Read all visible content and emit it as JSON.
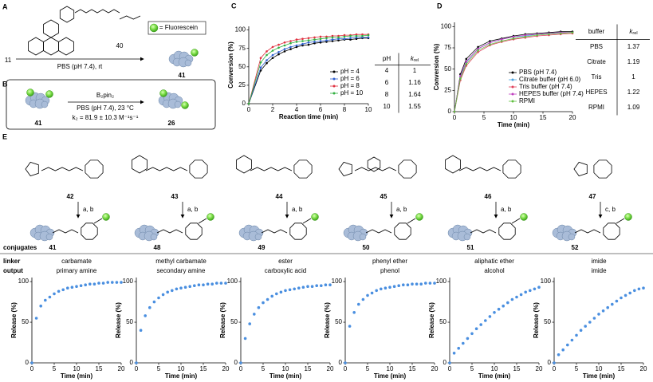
{
  "panel_labels": [
    "A",
    "B",
    "C",
    "D",
    "E"
  ],
  "scheme_a": {
    "reactant": "11",
    "reagent": "40",
    "legend": "= Fluorescein",
    "conditions": "PBS (pH 7.4), rt",
    "product": "41"
  },
  "scheme_b": {
    "reactant": "41",
    "reagent": "B₂pin₂",
    "conditions": "PBS (pH 7.4), 23 °C",
    "rate": "k₂ = 81.9 ± 10.3 M⁻¹s⁻¹",
    "product": "26"
  },
  "tables": [
    {
      "header": [
        "pH",
        {
          "text": "k",
          "subscript": "rel"
        }
      ],
      "rows": [
        [
          4,
          1
        ],
        [
          6,
          1.16
        ],
        [
          8,
          1.64
        ],
        [
          10,
          1.55
        ]
      ]
    },
    {
      "header": [
        "buffer",
        {
          "text": "k",
          "subscript": "rel"
        }
      ],
      "rows": [
        [
          "PBS",
          1.37
        ],
        [
          "Citrate",
          1.19
        ],
        [
          "Tris",
          1
        ],
        [
          "HEPES",
          1.22
        ],
        [
          "RPMI",
          1.09
        ]
      ]
    }
  ],
  "scheme_e": {
    "compounds": [
      "42",
      "43",
      "44",
      "45",
      "46",
      "47"
    ],
    "reagents": [
      "a, b",
      "a, b",
      "a, b",
      "a, b",
      "a, b",
      "c, b"
    ],
    "conjugates_label": "conjugates",
    "conjugates": [
      "41",
      "48",
      "49",
      "50",
      "51",
      "52"
    ],
    "linker_label": "linker",
    "linker": [
      "carbamate",
      "methyl carbamate",
      "ester",
      "phenyl ether",
      "aliphatic ether",
      "imide"
    ],
    "output_label": "output",
    "output": [
      "primary amine",
      "secondary amine",
      "carboxylic acid",
      "phenol",
      "alcohol",
      "imide"
    ]
  },
  "chart_data": [
    {
      "type": "line",
      "xlabel": "Reaction time (min)",
      "ylabel": "Conversion (%)",
      "x": [
        0,
        1,
        1.5,
        2,
        2.5,
        3,
        3.5,
        4,
        4.5,
        5,
        5.5,
        6,
        6.5,
        7,
        7.5,
        8,
        8.5,
        9,
        9.5,
        10
      ],
      "series": [
        {
          "name": "pH = 4",
          "color": "#000000",
          "values": [
            0,
            45,
            55,
            62,
            67,
            71,
            74,
            77,
            79,
            80,
            82,
            83,
            84,
            85,
            86,
            87,
            87,
            88,
            89,
            89
          ]
        },
        {
          "name": "pH = 6",
          "color": "#2f5fd0",
          "values": [
            0,
            49,
            59,
            66,
            70,
            74,
            77,
            79,
            81,
            83,
            84,
            85,
            86,
            87,
            88,
            88,
            89,
            90,
            90,
            90
          ]
        },
        {
          "name": "pH = 8",
          "color": "#e03040",
          "values": [
            0,
            62,
            71,
            77,
            80,
            83,
            85,
            87,
            88,
            89,
            90,
            91,
            91,
            92,
            92,
            93,
            93,
            94,
            94,
            94
          ]
        },
        {
          "name": "pH = 10",
          "color": "#30b040",
          "values": [
            0,
            56,
            66,
            72,
            76,
            79,
            82,
            84,
            85,
            86,
            87,
            88,
            89,
            90,
            90,
            91,
            92,
            92,
            92,
            93
          ]
        }
      ],
      "xlim": [
        0,
        10
      ],
      "xticks": [
        0,
        2,
        4,
        6,
        8,
        10
      ],
      "ylim": [
        0,
        105
      ],
      "yticks": [
        0,
        25,
        50,
        75,
        100
      ],
      "legend": "lower right"
    },
    {
      "type": "line",
      "xlabel": "Time (min)",
      "ylabel": "Conversion (%)",
      "x": [
        0,
        1,
        2,
        4,
        6,
        8,
        10,
        12,
        14,
        16,
        18,
        20
      ],
      "series": [
        {
          "name": "PBS (pH 7.4)",
          "color": "#000000",
          "values": [
            0,
            44,
            62,
            76,
            83,
            86,
            89,
            91,
            92,
            93,
            94,
            94
          ]
        },
        {
          "name": "Citrate buffer (pH 6.0)",
          "color": "#4aa3df",
          "values": [
            0,
            41,
            58,
            74,
            81,
            85,
            88,
            89,
            91,
            92,
            93,
            93
          ]
        },
        {
          "name": "Tris buffer (pH 7.4)",
          "color": "#e0405a",
          "values": [
            0,
            37,
            54,
            70,
            78,
            82,
            85,
            87,
            89,
            90,
            91,
            92
          ]
        },
        {
          "name": "HEPES buffer (pH 7.4)",
          "color": "#c040c0",
          "values": [
            0,
            42,
            59,
            74,
            81,
            85,
            88,
            90,
            91,
            92,
            93,
            93
          ]
        },
        {
          "name": "RPMI",
          "color": "#60c040",
          "values": [
            0,
            39,
            56,
            72,
            79,
            83,
            86,
            88,
            90,
            91,
            92,
            93
          ]
        }
      ],
      "xlim": [
        0,
        20
      ],
      "xticks": [
        0,
        5,
        10,
        15,
        20
      ],
      "ylim": [
        0,
        105
      ],
      "yticks": [
        0,
        25,
        50,
        75,
        100
      ],
      "legend": "lower right"
    },
    {
      "type": "scatter",
      "xlabel": "Time (min)",
      "ylabel": "Release (%)",
      "color": "#4a8fe0",
      "x": [
        0,
        1,
        2,
        3,
        4,
        5,
        6,
        7,
        8,
        9,
        10,
        11,
        12,
        13,
        14,
        15,
        16,
        17,
        18,
        19,
        20
      ],
      "values": [
        0,
        55,
        70,
        77,
        81,
        85,
        88,
        90,
        92,
        93,
        94,
        95,
        96,
        97,
        97,
        98,
        98,
        99,
        99,
        99,
        99
      ],
      "xlim": [
        0,
        20
      ],
      "xticks": [
        0,
        5,
        10,
        15,
        20
      ],
      "ylim": [
        0,
        105
      ],
      "yticks": [
        0,
        50,
        100
      ]
    },
    {
      "type": "scatter",
      "xlabel": "Time (min)",
      "ylabel": "Release (%)",
      "color": "#4a8fe0",
      "x": [
        0,
        1,
        2,
        3,
        4,
        5,
        6,
        7,
        8,
        9,
        10,
        11,
        12,
        13,
        14,
        15,
        16,
        17,
        18,
        19,
        20
      ],
      "values": [
        0,
        40,
        58,
        68,
        75,
        80,
        84,
        87,
        89,
        91,
        92,
        93,
        94,
        95,
        96,
        96,
        97,
        97,
        98,
        98,
        98
      ],
      "xlim": [
        0,
        20
      ],
      "xticks": [
        0,
        5,
        10,
        15,
        20
      ],
      "ylim": [
        0,
        105
      ],
      "yticks": [
        0,
        50,
        100
      ]
    },
    {
      "type": "scatter",
      "xlabel": "Time (min)",
      "ylabel": "Release (%)",
      "color": "#4a8fe0",
      "x": [
        0,
        1,
        2,
        3,
        4,
        5,
        6,
        7,
        8,
        9,
        10,
        11,
        12,
        13,
        14,
        15,
        16,
        17,
        18,
        19,
        20
      ],
      "values": [
        0,
        30,
        48,
        60,
        68,
        74,
        78,
        82,
        85,
        87,
        89,
        90,
        91,
        92,
        93,
        94,
        94,
        95,
        95,
        96,
        96
      ],
      "xlim": [
        0,
        20
      ],
      "xticks": [
        0,
        5,
        10,
        15,
        20
      ],
      "ylim": [
        0,
        105
      ],
      "yticks": [
        0,
        50,
        100
      ]
    },
    {
      "type": "scatter",
      "xlabel": "Time (min)",
      "ylabel": "Release (%)",
      "color": "#4a8fe0",
      "x": [
        0,
        1,
        2,
        3,
        4,
        5,
        6,
        7,
        8,
        9,
        10,
        11,
        12,
        13,
        14,
        15,
        16,
        17,
        18,
        19,
        20
      ],
      "values": [
        0,
        45,
        62,
        72,
        78,
        83,
        86,
        89,
        91,
        92,
        93,
        94,
        95,
        96,
        96,
        97,
        97,
        97,
        98,
        98,
        98
      ],
      "xlim": [
        0,
        20
      ],
      "xticks": [
        0,
        5,
        10,
        15,
        20
      ],
      "ylim": [
        0,
        105
      ],
      "yticks": [
        0,
        50,
        100
      ]
    },
    {
      "type": "scatter",
      "xlabel": "Time (min)",
      "ylabel": "Release (%)",
      "color": "#4a8fe0",
      "x": [
        0,
        1,
        2,
        3,
        4,
        5,
        6,
        7,
        8,
        9,
        10,
        11,
        12,
        13,
        14,
        15,
        16,
        17,
        18,
        19,
        20
      ],
      "values": [
        0,
        12,
        18,
        24,
        30,
        36,
        42,
        47,
        52,
        57,
        62,
        66,
        70,
        74,
        78,
        81,
        84,
        87,
        89,
        91,
        93
      ],
      "xlim": [
        0,
        20
      ],
      "xticks": [
        0,
        5,
        10,
        15,
        20
      ],
      "ylim": [
        0,
        105
      ],
      "yticks": [
        0,
        50,
        100
      ]
    },
    {
      "type": "scatter",
      "xlabel": "Time (min)",
      "ylabel": "Release (%)",
      "color": "#4a8fe0",
      "x": [
        0,
        1,
        2,
        3,
        4,
        5,
        6,
        7,
        8,
        9,
        10,
        11,
        12,
        13,
        14,
        15,
        16,
        17,
        18,
        19,
        20
      ],
      "values": [
        0,
        10,
        16,
        22,
        28,
        34,
        40,
        45,
        50,
        55,
        60,
        64,
        68,
        72,
        76,
        80,
        83,
        86,
        89,
        91,
        92
      ],
      "xlim": [
        0,
        20
      ],
      "xticks": [
        0,
        5,
        10,
        15,
        20
      ],
      "ylim": [
        0,
        105
      ],
      "yticks": [
        0,
        50,
        100
      ]
    }
  ]
}
